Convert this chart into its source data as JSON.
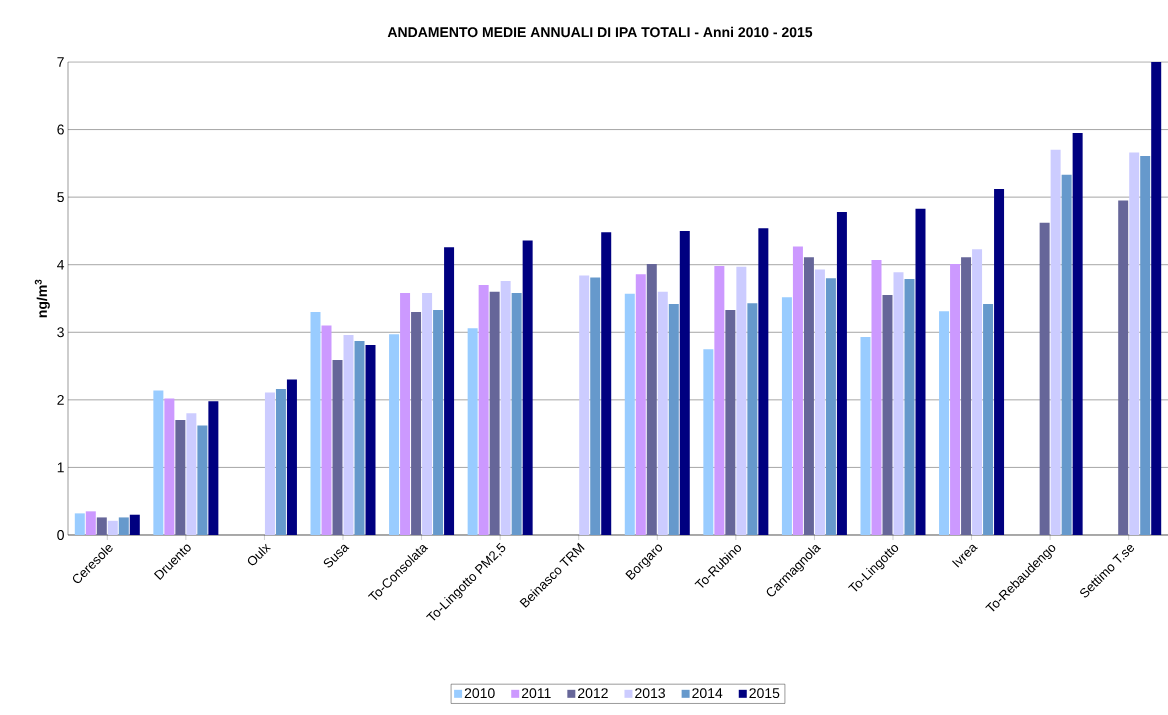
{
  "chart_data": {
    "type": "bar",
    "title": "ANDAMENTO MEDIE ANNUALI DI IPA TOTALI  - Anni 2010 - 2015",
    "ylabel": "ng/m$^{3}$",
    "categories": [
      "Ceresole",
      "Druento",
      "Oulx",
      "Susa",
      "To-Consolata",
      "To-Lingotto PM2,5",
      "Beinasco TRM",
      "Borgaro",
      "To-Rubino",
      "Carmagnola",
      "To-Lingotto",
      "Ivrea",
      "To-Rebaudengo",
      "Settimo T.se"
    ],
    "series": [
      {
        "name": "2010",
        "color": "#99ccff",
        "values": [
          0.32,
          2.14,
          null,
          3.3,
          2.97,
          3.06,
          null,
          3.57,
          2.75,
          3.52,
          2.93,
          3.31,
          null,
          null
        ]
      },
      {
        "name": "2011",
        "color": "#cc99ff",
        "values": [
          0.35,
          2.02,
          null,
          3.1,
          3.58,
          3.7,
          null,
          3.86,
          3.98,
          4.27,
          4.07,
          4.01,
          null,
          null
        ]
      },
      {
        "name": "2012",
        "color": "#666699",
        "values": [
          0.26,
          1.7,
          null,
          2.59,
          3.3,
          3.6,
          null,
          4.01,
          3.33,
          4.11,
          3.55,
          4.11,
          4.62,
          4.95
        ]
      },
      {
        "name": "2013",
        "color": "#ccccff",
        "values": [
          0.21,
          1.8,
          2.11,
          2.96,
          3.58,
          3.76,
          3.84,
          3.6,
          3.97,
          3.93,
          3.89,
          4.23,
          5.7,
          5.66
        ]
      },
      {
        "name": "2014",
        "color": "#6699cc",
        "values": [
          0.26,
          1.62,
          2.16,
          2.87,
          3.33,
          3.58,
          3.81,
          3.42,
          3.43,
          3.8,
          3.79,
          3.42,
          5.33,
          5.61
        ]
      },
      {
        "name": "2015",
        "color": "#000080",
        "values": [
          0.3,
          1.98,
          2.3,
          2.81,
          4.26,
          4.36,
          4.48,
          4.5,
          4.54,
          4.78,
          4.83,
          5.12,
          5.95,
          7.0
        ]
      }
    ],
    "ylim": [
      0,
      7
    ],
    "yticks": [
      0,
      1,
      2,
      3,
      4,
      5,
      6,
      7
    ],
    "grid": "y",
    "legend": "bottom"
  }
}
